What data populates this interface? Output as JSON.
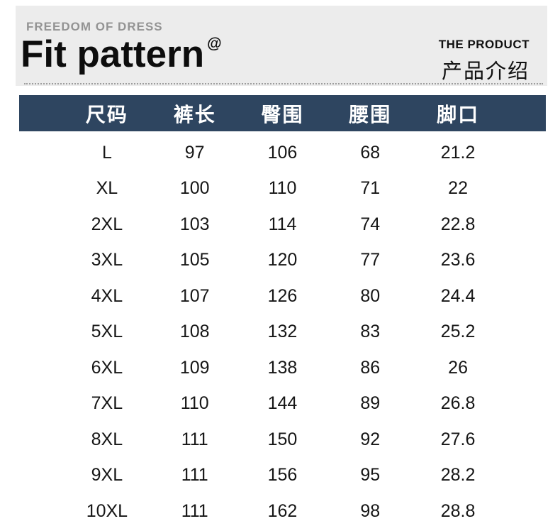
{
  "header": {
    "tagline": "FREEDOM OF DRESS",
    "title": "Fit pattern",
    "title_superscript": "@",
    "section_label_en": "THE PRODUCT",
    "section_label_zh": "产品介绍"
  },
  "size_table": {
    "columns": [
      "尺码",
      "裤长",
      "臀围",
      "腰围",
      "脚口"
    ],
    "rows": [
      [
        "L",
        "97",
        "106",
        "68",
        "21.2"
      ],
      [
        "XL",
        "100",
        "110",
        "71",
        "22"
      ],
      [
        "2XL",
        "103",
        "114",
        "74",
        "22.8"
      ],
      [
        "3XL",
        "105",
        "120",
        "77",
        "23.6"
      ],
      [
        "4XL",
        "107",
        "126",
        "80",
        "24.4"
      ],
      [
        "5XL",
        "108",
        "132",
        "83",
        "25.2"
      ],
      [
        "6XL",
        "109",
        "138",
        "86",
        "26"
      ],
      [
        "7XL",
        "110",
        "144",
        "89",
        "26.8"
      ],
      [
        "8XL",
        "111",
        "150",
        "92",
        "27.6"
      ],
      [
        "9XL",
        "111",
        "156",
        "95",
        "28.2"
      ],
      [
        "10XL",
        "111",
        "162",
        "98",
        "28.8"
      ]
    ]
  },
  "chart_data": {
    "type": "table",
    "columns": [
      "尺码",
      "裤长",
      "臀围",
      "腰围",
      "脚口"
    ],
    "rows": [
      [
        "L",
        97,
        106,
        68,
        21.2
      ],
      [
        "XL",
        100,
        110,
        71,
        22
      ],
      [
        "2XL",
        103,
        114,
        74,
        22.8
      ],
      [
        "3XL",
        105,
        120,
        77,
        23.6
      ],
      [
        "4XL",
        107,
        126,
        80,
        24.4
      ],
      [
        "5XL",
        108,
        132,
        83,
        25.2
      ],
      [
        "6XL",
        109,
        138,
        86,
        26
      ],
      [
        "7XL",
        110,
        144,
        89,
        26.8
      ],
      [
        "8XL",
        111,
        150,
        92,
        27.6
      ],
      [
        "9XL",
        111,
        156,
        95,
        28.2
      ],
      [
        "10XL",
        111,
        162,
        98,
        28.8
      ]
    ]
  },
  "colors": {
    "header_background": "#ececec",
    "table_header_background": "#2e4560",
    "table_header_text": "#ffffff",
    "tagline_gray": "#939393",
    "body_text": "#161616"
  }
}
